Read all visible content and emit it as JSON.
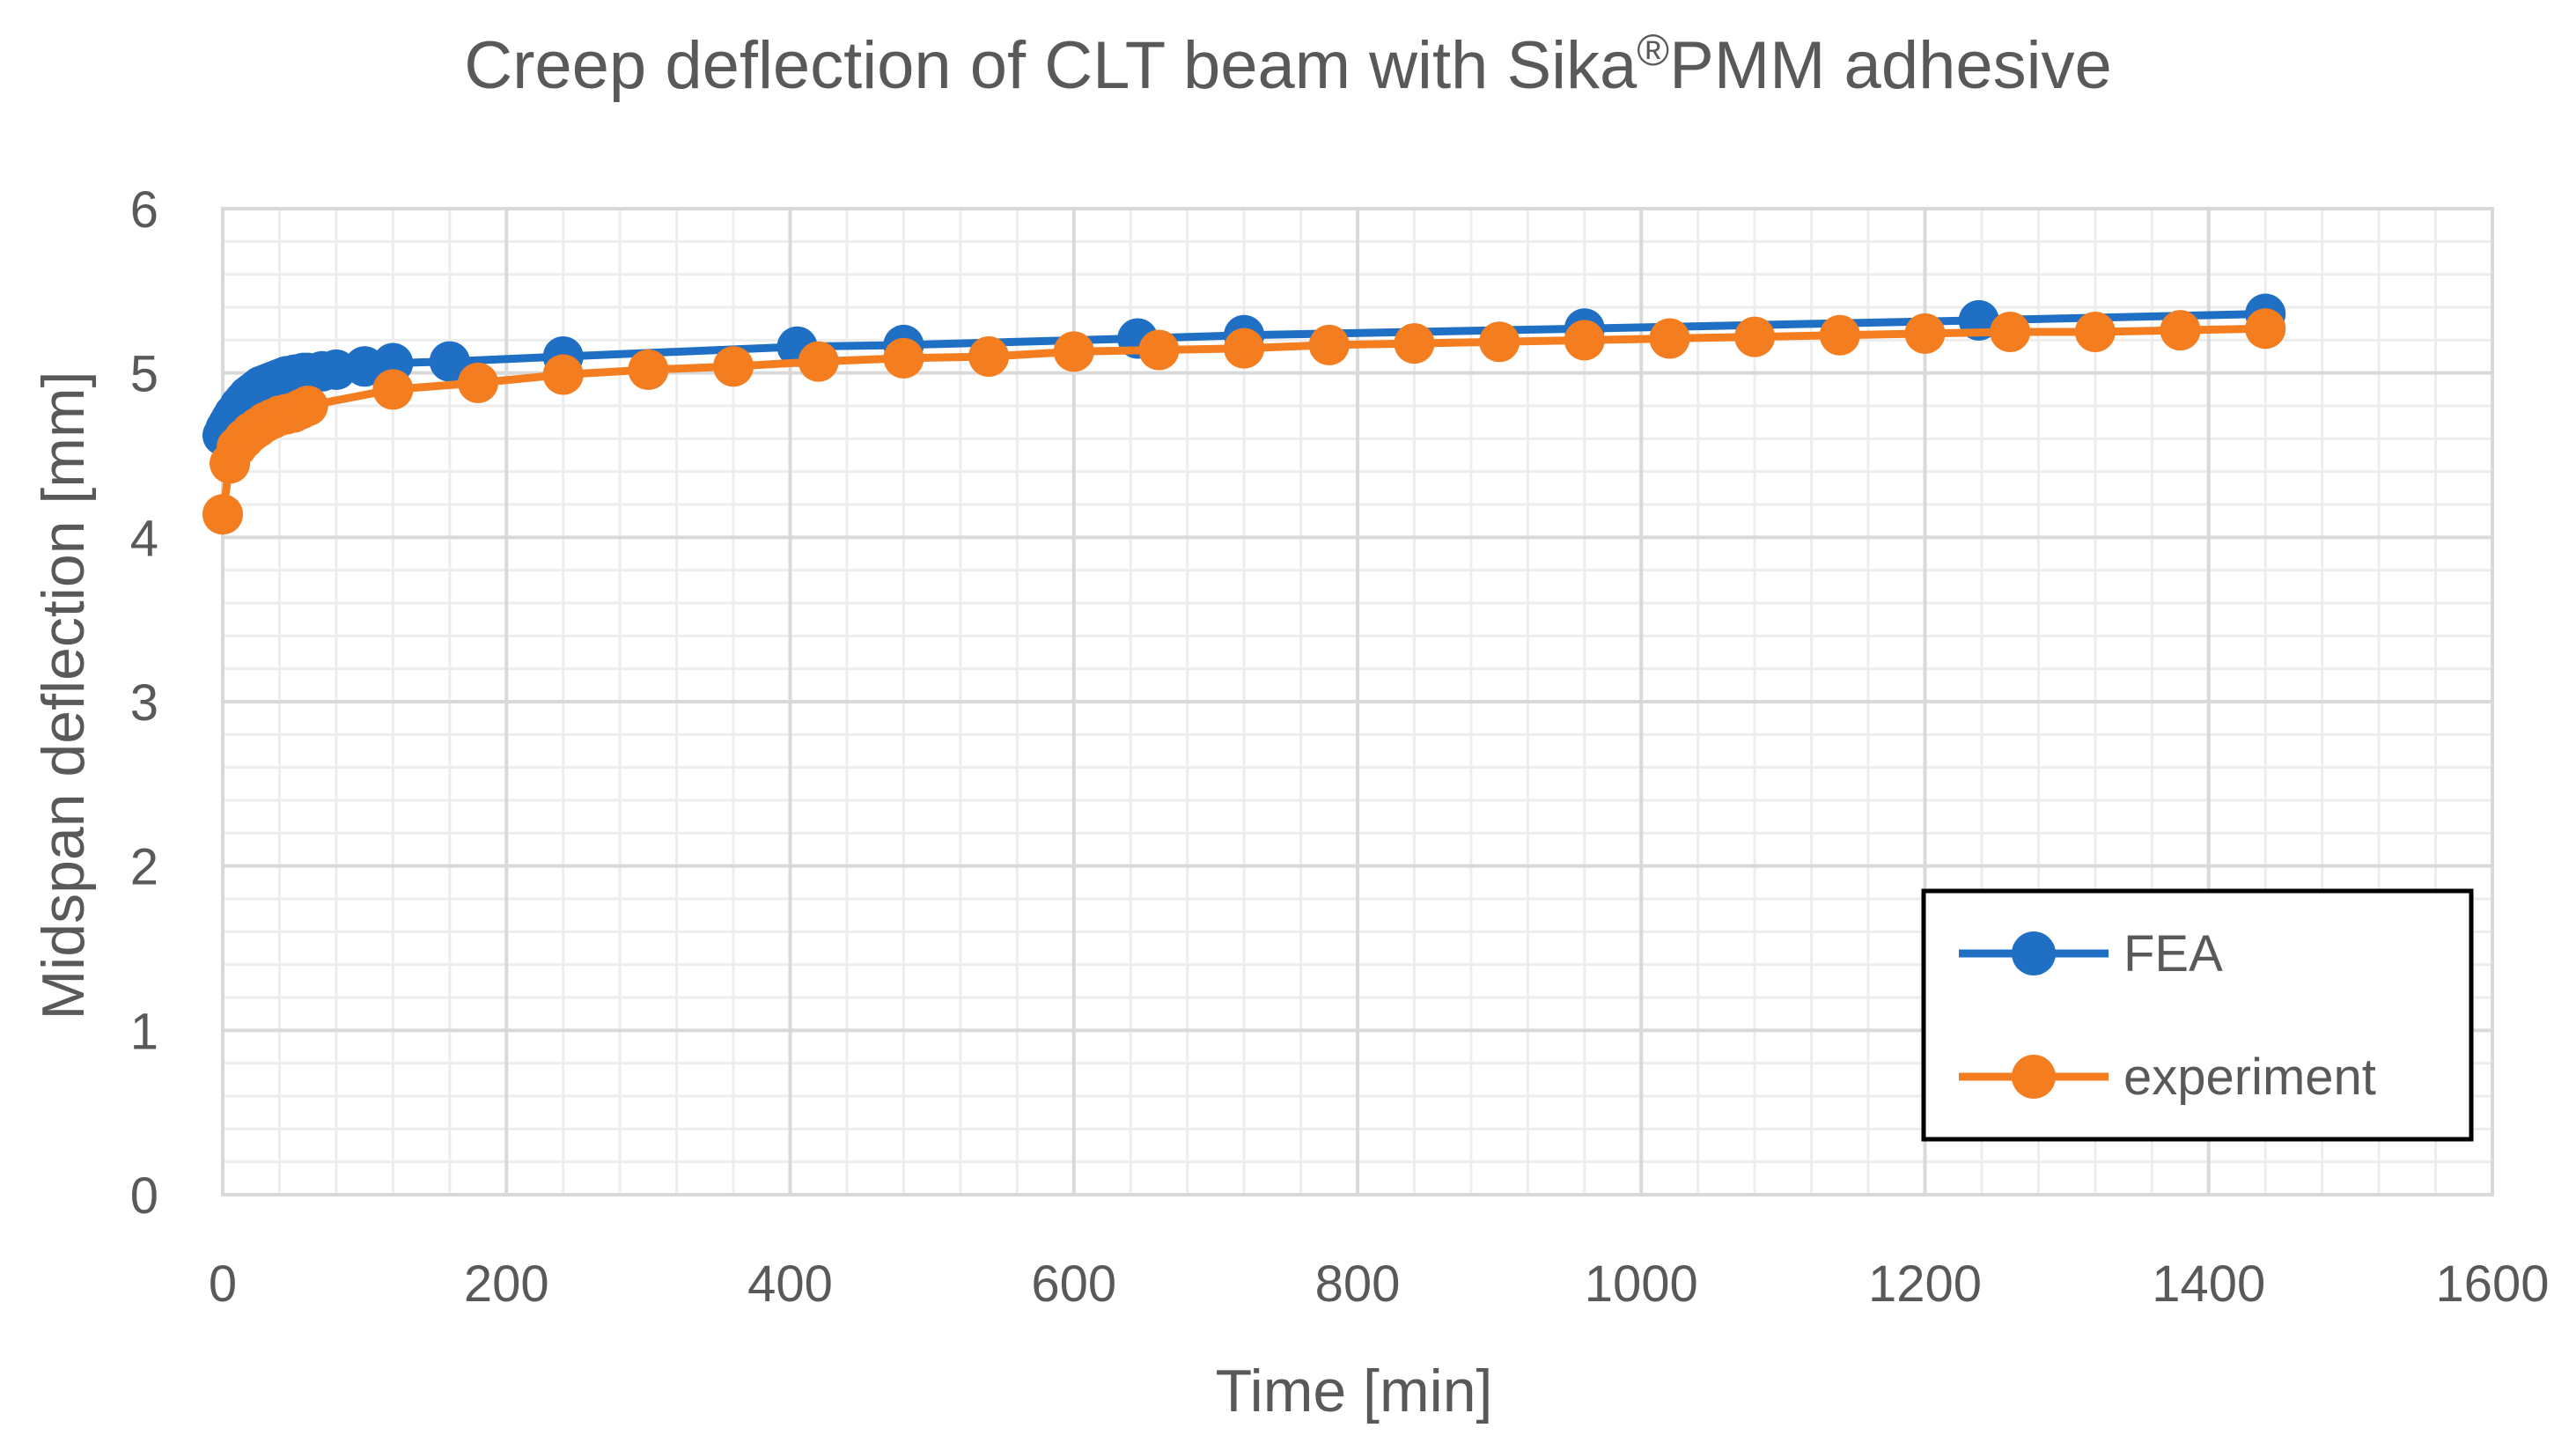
{
  "chart_data": {
    "type": "line",
    "title": "Creep deflection of CLT beam with Sika",
    "title_superscript": "®",
    "title_suffix": "PMM adhesive",
    "xlabel": "Time [min]",
    "ylabel": "Midspan deflection [mm]",
    "xlim": [
      0,
      1600
    ],
    "ylim": [
      0,
      6
    ],
    "x_ticks": [
      0,
      200,
      400,
      600,
      800,
      1000,
      1200,
      1400,
      1600
    ],
    "y_ticks": [
      0,
      1,
      2,
      3,
      4,
      5,
      6
    ],
    "x_minor_step": 40,
    "y_minor_step": 0.2,
    "grid": true,
    "legend_position": "bottom-right",
    "series": [
      {
        "name": "FEA",
        "color": "#1F6FC5",
        "x": [
          0,
          2,
          4,
          6,
          8,
          10,
          12,
          15,
          18,
          21,
          24,
          27,
          30,
          33,
          36,
          39,
          42,
          45,
          48,
          51,
          54,
          57,
          60,
          70,
          80,
          100,
          120,
          160,
          240,
          405,
          480,
          645,
          720,
          960,
          1238,
          1440
        ],
        "y": [
          4.62,
          4.66,
          4.69,
          4.72,
          4.75,
          4.77,
          4.8,
          4.83,
          4.86,
          4.88,
          4.9,
          4.92,
          4.93,
          4.94,
          4.95,
          4.96,
          4.97,
          4.98,
          4.98,
          4.99,
          4.99,
          5.0,
          5.0,
          5.01,
          5.02,
          5.04,
          5.06,
          5.07,
          5.1,
          5.16,
          5.17,
          5.21,
          5.23,
          5.27,
          5.32,
          5.36
        ]
      },
      {
        "name": "experiment",
        "color": "#F47D20",
        "x": [
          0,
          5,
          10,
          15,
          20,
          25,
          30,
          35,
          40,
          45,
          50,
          55,
          60,
          120,
          180,
          240,
          300,
          360,
          420,
          480,
          540,
          600,
          660,
          720,
          780,
          840,
          900,
          960,
          1020,
          1080,
          1140,
          1200,
          1260,
          1320,
          1380,
          1440
        ],
        "y": [
          4.14,
          4.45,
          4.55,
          4.6,
          4.64,
          4.67,
          4.7,
          4.72,
          4.74,
          4.75,
          4.76,
          4.78,
          4.8,
          4.9,
          4.94,
          4.99,
          5.02,
          5.04,
          5.07,
          5.09,
          5.1,
          5.13,
          5.14,
          5.15,
          5.17,
          5.18,
          5.19,
          5.2,
          5.21,
          5.22,
          5.23,
          5.24,
          5.25,
          5.25,
          5.26,
          5.27
        ]
      }
    ]
  }
}
